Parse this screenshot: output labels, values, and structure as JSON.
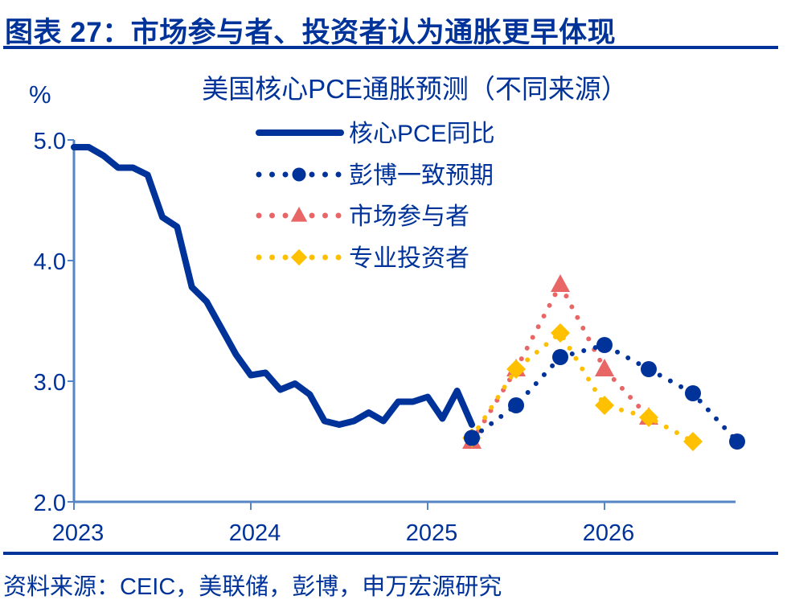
{
  "figure_title": "图表 27：市场参与者、投资者认为通胀更早体现",
  "source": "资料来源：CEIC，美联储，彭博，申万宏源研究",
  "colors": {
    "navy": "#003399",
    "axis": "#5585c5",
    "market": "#e86666",
    "pro": "#ffc000"
  },
  "chart_data": {
    "type": "line",
    "title": "美国核心PCE通胀预测（不同来源）",
    "ylabel": "%",
    "xlabel": "",
    "ylim": [
      2.0,
      5.0
    ],
    "yticks": [
      "2.0",
      "3.0",
      "4.0",
      "5.0"
    ],
    "yticks_values": [
      2.0,
      3.0,
      4.0,
      5.0
    ],
    "xticks": [
      "2023",
      "2024",
      "2025",
      "2026"
    ],
    "xlim": [
      "2023-01",
      "2026-10"
    ],
    "grid": false,
    "legend_placement": "top-center",
    "series": [
      {
        "name": "核心PCE同比",
        "style": "solid-line",
        "color": "#003399",
        "x": [
          "2023-01",
          "2023-02",
          "2023-03",
          "2023-04",
          "2023-05",
          "2023-06",
          "2023-07",
          "2023-08",
          "2023-09",
          "2023-10",
          "2023-11",
          "2023-12",
          "2024-01",
          "2024-02",
          "2024-03",
          "2024-04",
          "2024-05",
          "2024-06",
          "2024-07",
          "2024-08",
          "2024-09",
          "2024-10",
          "2024-11",
          "2024-12",
          "2025-01",
          "2025-02",
          "2025-03",
          "2025-04"
        ],
        "values": [
          4.94,
          4.94,
          4.87,
          4.77,
          4.77,
          4.71,
          4.36,
          4.28,
          3.78,
          3.66,
          3.44,
          3.22,
          3.05,
          3.07,
          2.93,
          2.98,
          2.89,
          2.67,
          2.64,
          2.67,
          2.74,
          2.67,
          2.83,
          2.83,
          2.87,
          2.69,
          2.92,
          2.64
        ]
      },
      {
        "name": "彭博一致预期",
        "style": "dotted-circle",
        "color": "#003399",
        "x": [
          "2025-04",
          "2025-07",
          "2025-10",
          "2026-01",
          "2026-04",
          "2026-07",
          "2026-10"
        ],
        "values": [
          2.53,
          2.8,
          3.2,
          3.3,
          3.1,
          2.9,
          2.5
        ]
      },
      {
        "name": "市场参与者",
        "style": "dotted-triangle",
        "color": "#e86666",
        "x": [
          "2025-04",
          "2025-07",
          "2025-10",
          "2026-01",
          "2026-04"
        ],
        "values": [
          2.5,
          3.1,
          3.8,
          3.1,
          2.7
        ]
      },
      {
        "name": "专业投资者",
        "style": "dotted-diamond",
        "color": "#ffc000",
        "x": [
          "2025-04",
          "2025-07",
          "2025-10",
          "2026-01",
          "2026-04",
          "2026-07"
        ],
        "values": [
          2.53,
          3.1,
          3.4,
          2.8,
          2.7,
          2.5
        ]
      }
    ]
  }
}
